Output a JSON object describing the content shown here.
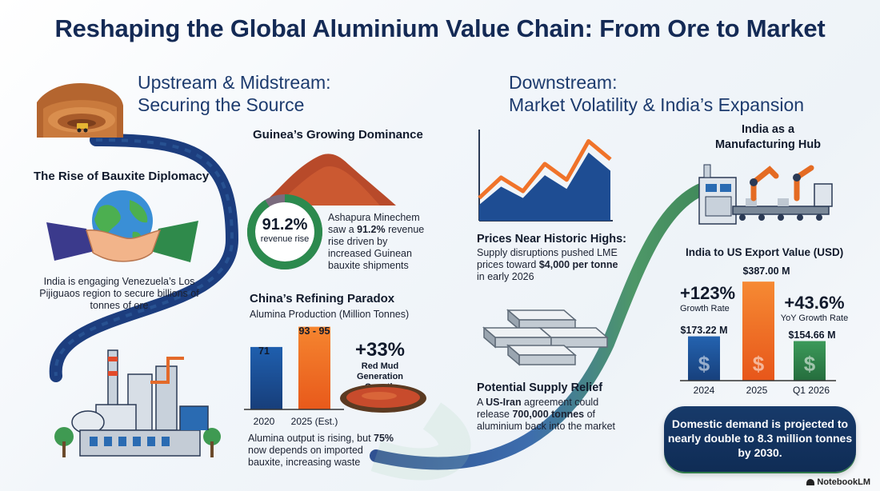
{
  "title": "Reshaping the Global Aluminium Value Chain: From Ore to Market",
  "upstream": {
    "heading_line1": "Upstream & Midstream:",
    "heading_line2": "Securing the Source",
    "bauxite_diplomacy": {
      "title": "The Rise of Bauxite Diplomacy",
      "text": "India is engaging Venezuela’s Los Pijiguaos region to secure billions of tonnes of ore"
    },
    "guinea": {
      "title": "Guinea’s Growing Dominance",
      "ring_value": "91.2%",
      "ring_caption": "revenue rise",
      "ring_fraction": 0.912,
      "text_before": "Ashapura Minechem saw a ",
      "text_bold": "91.2%",
      "text_after": " revenue rise driven by increased Guinean bauxite shipments"
    },
    "china": {
      "title": "China’s Refining Paradox",
      "chart_title": "Alumina Production (Million Tonnes)",
      "growth_value": "+33%",
      "growth_caption": "Red Mud Generation Growth",
      "text_before": "Alumina output is rising, but ",
      "text_bold": "75%",
      "text_after": " now depends on imported bauxite, increasing waste"
    }
  },
  "downstream": {
    "heading_line1": "Downstream:",
    "heading_line2": "Market Volatility & India’s Expansion",
    "prices": {
      "title": "Prices Near Historic Highs:",
      "text_before": "Supply disruptions pushed LME prices toward ",
      "text_bold": "$4,000 per tonne",
      "text_after": " in early 2026"
    },
    "relief": {
      "title": "Potential Supply Relief",
      "text_a": "A ",
      "text_bold1": "US-Iran",
      "text_b": " agreement could release ",
      "text_bold2": "700,000 tonnes",
      "text_c": " of aluminium back into the market"
    },
    "india_hub": {
      "title_line1": "India as a",
      "title_line2": "Manufacturing Hub"
    },
    "export": {
      "chart_title": "India to US Export Value (USD)",
      "growth1_value": "+123%",
      "growth1_caption": "Growth Rate",
      "growth2_value": "+43.6%",
      "growth2_caption": "YoY Growth Rate",
      "dollar_symbol": "$"
    },
    "domestic_text": "Domestic demand is projected to nearly double to 8.3 million tonnes by 2030."
  },
  "logo_text": "NotebookLM",
  "colors": {
    "navy": "#15306b",
    "orange": "#f06d25",
    "green": "#2c8a4e",
    "blue_bar": "#1e56a0"
  },
  "chart_data": [
    {
      "type": "bar",
      "title": "Alumina Production (Million Tonnes)",
      "categories": [
        "2020",
        "2025 (Est.)"
      ],
      "values": [
        71,
        94
      ],
      "value_labels": [
        "71",
        "93 - 95"
      ],
      "ylim": [
        0,
        100
      ]
    },
    {
      "type": "bar",
      "title": "India to US Export Value (USD)",
      "categories": [
        "2024",
        "2025",
        "Q1 2026"
      ],
      "values": [
        173.22,
        387.0,
        154.66
      ],
      "value_labels": [
        "$173.22 M",
        "$387.00 M",
        "$154.66 M"
      ],
      "ylim": [
        0,
        400
      ]
    },
    {
      "type": "line",
      "title": "",
      "x": [
        0,
        1,
        2,
        3,
        4,
        5,
        6
      ],
      "series": [
        {
          "values": [
            1.0,
            1.9,
            1.3,
            2.5,
            1.8,
            3.5,
            2.7
          ]
        },
        {
          "values": [
            0.7,
            1.5,
            1.0,
            2.0,
            1.4,
            3.0,
            2.2
          ]
        }
      ]
    }
  ]
}
